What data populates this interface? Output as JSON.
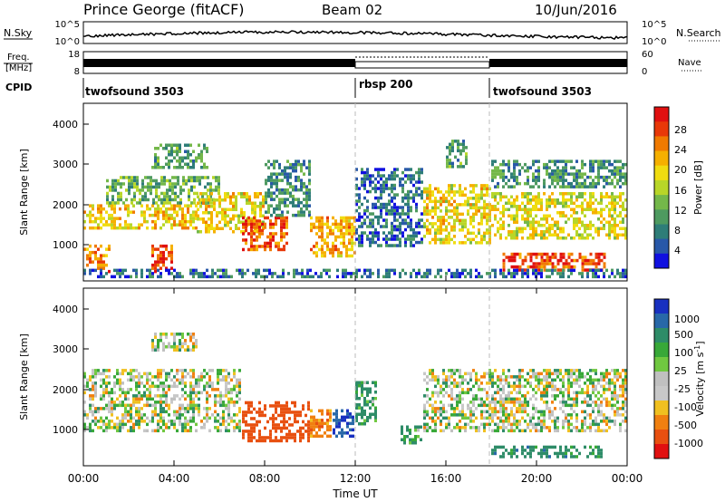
{
  "header": {
    "station": "Prince George (fitACF)",
    "beam": "Beam 02",
    "date": "10/Jun/2016"
  },
  "noise_panel": {
    "left_label": "N.Sky",
    "left_ticks": [
      "10^5",
      "10^0"
    ],
    "right_ticks": [
      "10^5",
      "10^0"
    ],
    "right_label": "N.Search"
  },
  "freq_panel": {
    "label_1": "Freq.",
    "label_2": "[MHz]",
    "left_ticks": [
      "18",
      "8"
    ],
    "right_ticks": [
      "60",
      "0"
    ],
    "right_label": "Nave"
  },
  "cpid": {
    "label": "CPID",
    "segments": [
      {
        "name": "twofsound 3503",
        "start_hour": 0,
        "end_hour": 12
      },
      {
        "name": "rbsp 200",
        "start_hour": 12,
        "end_hour": 18
      },
      {
        "name": "twofsound 3503",
        "start_hour": 18,
        "end_hour": 24
      }
    ]
  },
  "chart_data": [
    {
      "type": "heatmap",
      "title": "",
      "xlabel": "",
      "ylabel": "Slant Range [km]",
      "xlim_hours": [
        0,
        24
      ],
      "ylim_km": [
        200,
        4600
      ],
      "yticks": [
        "4000",
        "3000",
        "2000",
        "1000"
      ],
      "colorbar": {
        "label": "Power [dB]",
        "ticks": [
          "28",
          "24",
          "20",
          "16",
          "12",
          "8",
          "4"
        ],
        "range": [
          0,
          32
        ],
        "colors": [
          "#1010e0",
          "#2858a8",
          "#2e7d78",
          "#4e9a60",
          "#74b84a",
          "#b8d628",
          "#f0dc10",
          "#f5b000",
          "#f07a00",
          "#e83808",
          "#e01010"
        ]
      },
      "scatter_regions": [
        {
          "x0": 0,
          "x1": 1.2,
          "y0": 400,
          "y1": 1100,
          "value": 25
        },
        {
          "x0": 3,
          "x1": 4.0,
          "y0": 400,
          "y1": 1100,
          "value": 26
        },
        {
          "x0": 0,
          "x1": 5,
          "y0": 1500,
          "y1": 2100,
          "value": 20
        },
        {
          "x0": 1,
          "x1": 6,
          "y0": 2100,
          "y1": 2800,
          "value": 12
        },
        {
          "x0": 3,
          "x1": 5.5,
          "y0": 3000,
          "y1": 3600,
          "value": 10
        },
        {
          "x0": 5,
          "x1": 8,
          "y0": 1400,
          "y1": 2400,
          "value": 19
        },
        {
          "x0": 7,
          "x1": 9,
          "y0": 900,
          "y1": 1800,
          "value": 27
        },
        {
          "x0": 8,
          "x1": 10,
          "y0": 1800,
          "y1": 3200,
          "value": 9
        },
        {
          "x0": 10,
          "x1": 12,
          "y0": 800,
          "y1": 1800,
          "value": 22
        },
        {
          "x0": 12,
          "x1": 15,
          "y0": 1000,
          "y1": 3000,
          "value": 6
        },
        {
          "x0": 15,
          "x1": 18,
          "y0": 1100,
          "y1": 2600,
          "value": 19
        },
        {
          "x0": 16,
          "x1": 17,
          "y0": 3000,
          "y1": 3700,
          "value": 10
        },
        {
          "x0": 18,
          "x1": 24,
          "y0": 1200,
          "y1": 2400,
          "value": 18
        },
        {
          "x0": 18.5,
          "x1": 23,
          "y0": 400,
          "y1": 900,
          "value": 27
        },
        {
          "x0": 18,
          "x1": 24,
          "y0": 2500,
          "y1": 3200,
          "value": 9
        },
        {
          "x0": 0,
          "x1": 24,
          "y0": 250,
          "y1": 500,
          "value": 6
        }
      ]
    },
    {
      "type": "heatmap",
      "title": "",
      "xlabel": "Time UT",
      "ylabel": "Slant Range [km]",
      "xlim_hours": [
        0,
        24
      ],
      "ylim_km": [
        200,
        4600
      ],
      "yticks": [
        "4000",
        "3000",
        "2000",
        "1000"
      ],
      "xticks": [
        "00:00",
        "04:00",
        "08:00",
        "12:00",
        "16:00",
        "20:00",
        "00:00"
      ],
      "colorbar": {
        "label": "Velocity [m s^-1]",
        "ticks": [
          "1000",
          "500",
          "100",
          "25",
          "-25",
          "-100",
          "-500",
          "-1000"
        ],
        "colors": [
          "#1830c0",
          "#2868a8",
          "#2e8c68",
          "#38a838",
          "#70c840",
          "#c0c0c0",
          "#c8c8c8",
          "#f0c020",
          "#f08010",
          "#e85010",
          "#e01010"
        ]
      },
      "scatter_regions": [
        {
          "x0": 0,
          "x1": 7,
          "y0": 1000,
          "y1": 2600,
          "value": 0
        },
        {
          "x0": 3,
          "x1": 5,
          "y0": 3000,
          "y1": 3500,
          "value": 0
        },
        {
          "x0": 7,
          "x1": 10,
          "y0": 800,
          "y1": 1800,
          "value": -500
        },
        {
          "x0": 10,
          "x1": 11,
          "y0": 900,
          "y1": 1600,
          "value": -200
        },
        {
          "x0": 11,
          "x1": 12,
          "y0": 900,
          "y1": 1600,
          "value": 700
        },
        {
          "x0": 12,
          "x1": 13,
          "y0": 1200,
          "y1": 2300,
          "value": 150
        },
        {
          "x0": 14,
          "x1": 15,
          "y0": 700,
          "y1": 1200,
          "value": 150
        },
        {
          "x0": 15,
          "x1": 24,
          "y0": 1000,
          "y1": 2600,
          "value": 0
        },
        {
          "x0": 18,
          "x1": 23,
          "y0": 400,
          "y1": 700,
          "value": 200
        }
      ]
    }
  ]
}
